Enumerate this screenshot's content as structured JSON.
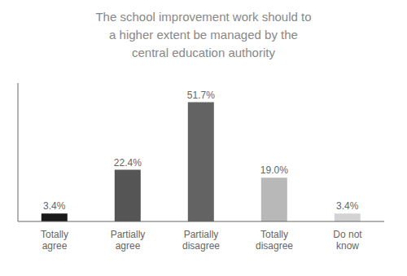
{
  "chart_data": {
    "type": "bar",
    "title": "The school improvement work should to\na higher extent be managed by the\ncentral education authority",
    "categories": [
      "Totally\nagree",
      "Partially\nagree",
      "Partially\ndisagree",
      "Totally\ndisagree",
      "Do not\nknow"
    ],
    "values": [
      3.4,
      22.4,
      51.7,
      19.0,
      3.4
    ],
    "value_labels": [
      "3.4%",
      "22.4%",
      "51.7%",
      "19.0%",
      "3.4%"
    ],
    "data_labels": true,
    "colors": [
      "#1a1a1a",
      "#555555",
      "#636363",
      "#b8b8b8",
      "#d4d4d4"
    ],
    "ylim": [
      0,
      60
    ],
    "grid": false,
    "tick_labels": "x"
  }
}
